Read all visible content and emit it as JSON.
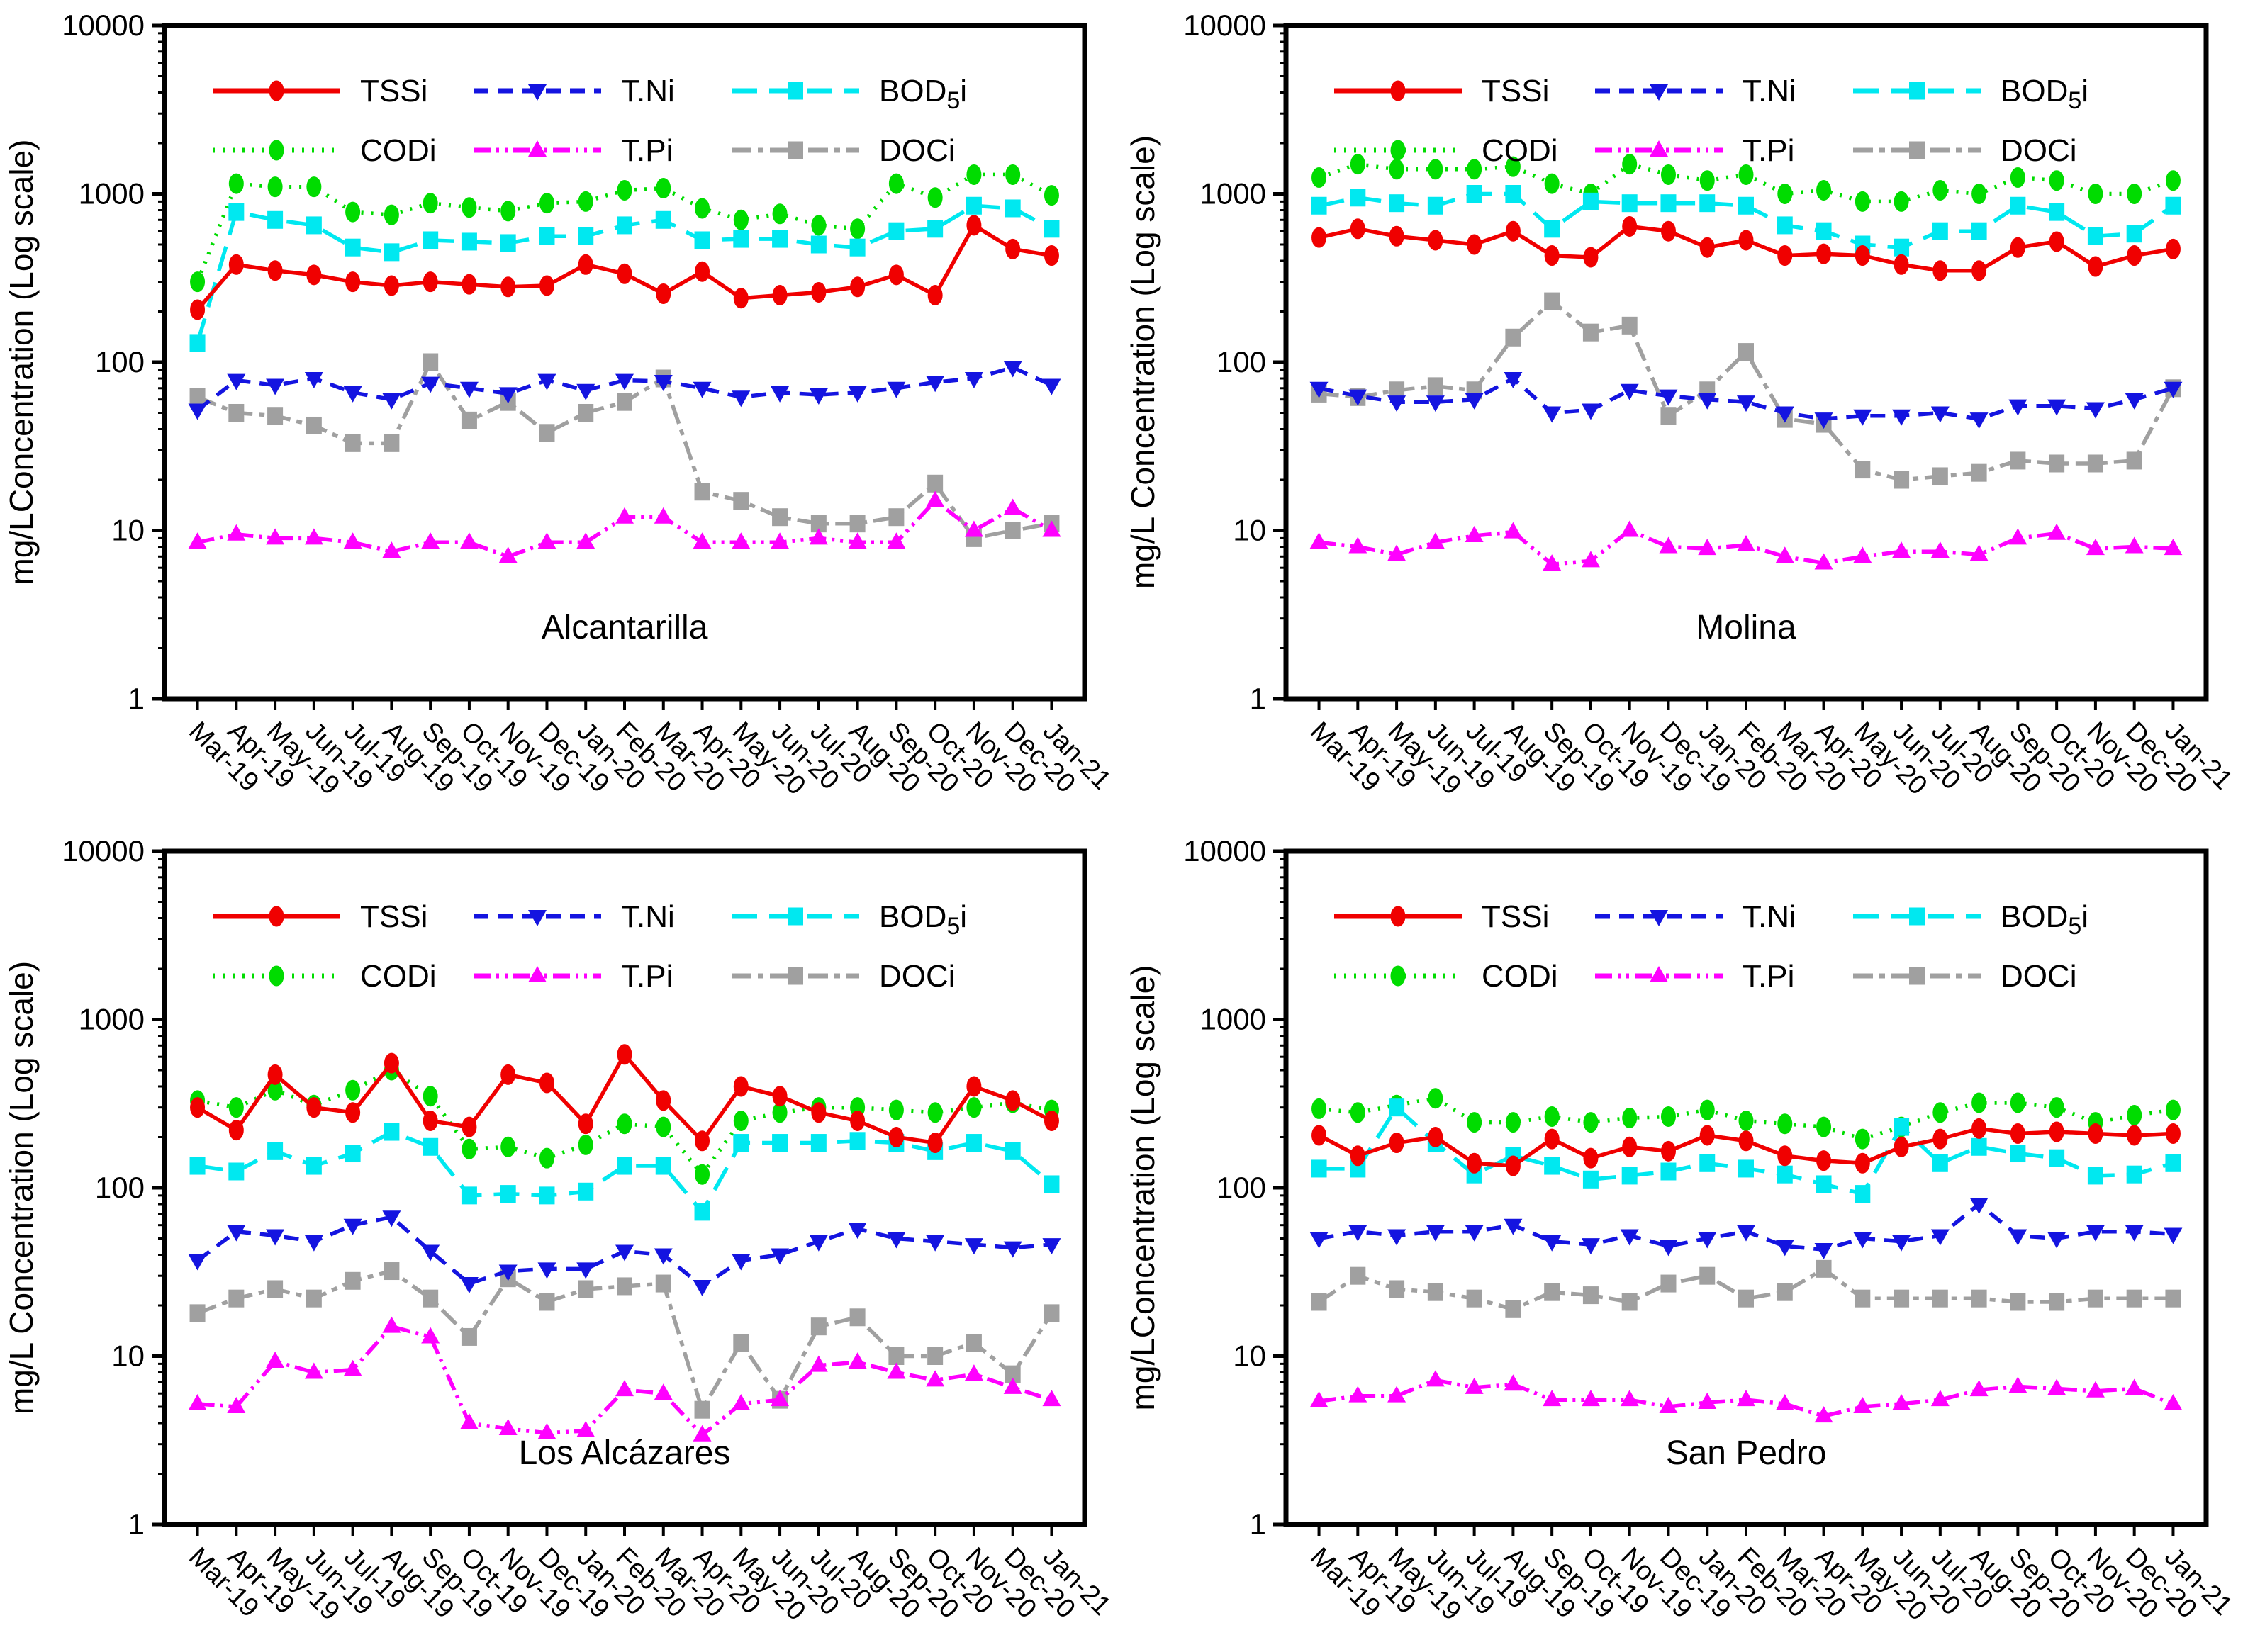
{
  "figure": {
    "description": "Four-panel log-scale monthly concentration time series",
    "y_axis_tick_labels": [
      "1",
      "10",
      "100",
      "1000",
      "10000"
    ],
    "colors": {
      "tssi": "#f00000",
      "codi": "#00dc00",
      "tni": "#1414e0",
      "tpi": "#ff00ff",
      "bod5i": "#00e8f0",
      "doci": "#a0a0a0",
      "axis": "#000000",
      "background": "#ffffff"
    }
  },
  "legend": [
    {
      "name": "TSSi",
      "label": "TSSi",
      "color": "#f00000",
      "dash": "solid",
      "marker": "ellipse"
    },
    {
      "name": "T.Ni",
      "label": "T.Ni",
      "color": "#1414e0",
      "dash": "dashed",
      "marker": "triangle-down"
    },
    {
      "name": "BOD5i",
      "label": "BOD5i",
      "label_pre": "BOD",
      "label_sub": "5",
      "label_post": "i",
      "color": "#00e8f0",
      "dash": "longdash",
      "marker": "square"
    },
    {
      "name": "CODi",
      "label": "CODi",
      "color": "#00dc00",
      "dash": "dotted",
      "marker": "ellipse"
    },
    {
      "name": "T.Pi",
      "label": "T.Pi",
      "color": "#ff00ff",
      "dash": "dashdotdot",
      "marker": "triangle-up"
    },
    {
      "name": "DOCi",
      "label": "DOCi",
      "color": "#a0a0a0",
      "dash": "dashdot",
      "marker": "square"
    }
  ],
  "chart_data": {
    "type": "line",
    "y_scale": "log",
    "ylim": [
      1,
      10000
    ],
    "y_ticks": [
      1,
      10,
      100,
      1000,
      10000
    ],
    "grid": false,
    "legend_position": "top-inside",
    "categories": [
      "Mar-19",
      "Apr-19",
      "May-19",
      "Jun-19",
      "Jul-19",
      "Aug-19",
      "Sep-19",
      "Oct-19",
      "Nov-19",
      "Dec-19",
      "Jan-20",
      "Feb-20",
      "Mar-20",
      "Apr-20",
      "May-20",
      "Jun-20",
      "Jul-20",
      "Aug-20",
      "Sep-20",
      "Oct-20",
      "Nov-20",
      "Dec-20",
      "Jan-21"
    ],
    "panels": [
      {
        "title": "Alcantarilla",
        "ylabel": "mg/LConcentration (Log scale)",
        "series": [
          {
            "name": "TSSi",
            "values": [
              205,
              380,
              350,
              330,
              300,
              285,
              300,
              290,
              280,
              285,
              380,
              335,
              255,
              345,
              240,
              250,
              260,
              280,
              330,
              250,
              650,
              470,
              430
            ]
          },
          {
            "name": "CODi",
            "values": [
              300,
              1150,
              1100,
              1100,
              780,
              750,
              880,
              830,
              790,
              880,
              900,
              1050,
              1080,
              820,
              700,
              760,
              650,
              620,
              1150,
              950,
              1300,
              1300,
              980
            ]
          },
          {
            "name": "T.Ni",
            "values": [
              52,
              78,
              73,
              80,
              66,
              60,
              75,
              70,
              65,
              78,
              68,
              78,
              77,
              70,
              62,
              66,
              64,
              66,
              70,
              76,
              80,
              93,
              73
            ]
          },
          {
            "name": "T.Pi",
            "values": [
              8.5,
              9.5,
              9,
              9,
              8.5,
              7.5,
              8.5,
              8.5,
              7,
              8.5,
              8.5,
              12,
              12,
              8.5,
              8.5,
              8.5,
              9,
              8.5,
              8.5,
              15,
              10,
              13.5,
              10
            ]
          },
          {
            "name": "BOD5i",
            "values": [
              130,
              780,
              700,
              650,
              480,
              450,
              530,
              520,
              510,
              560,
              560,
              650,
              700,
              530,
              540,
              540,
              500,
              480,
              600,
              620,
              850,
              820,
              620
            ]
          },
          {
            "name": "DOCi",
            "values": [
              62,
              50,
              48,
              42,
              33,
              33,
              100,
              45,
              58,
              38,
              50,
              58,
              80,
              17,
              15,
              12,
              11,
              11,
              12,
              19,
              9,
              10,
              11
            ]
          }
        ]
      },
      {
        "title": "Molina",
        "ylabel": "mg/L Concentration (Log scale)",
        "series": [
          {
            "name": "TSSi",
            "values": [
              550,
              620,
              560,
              530,
              500,
              600,
              430,
              420,
              640,
              600,
              480,
              530,
              430,
              440,
              430,
              380,
              350,
              350,
              480,
              520,
              370,
              430,
              470
            ]
          },
          {
            "name": "CODi",
            "values": [
              1250,
              1500,
              1400,
              1400,
              1400,
              1450,
              1150,
              1000,
              1500,
              1300,
              1200,
              1300,
              1000,
              1050,
              900,
              900,
              1050,
              1000,
              1250,
              1200,
              1000,
              1000,
              1200
            ]
          },
          {
            "name": "T.Ni",
            "values": [
              70,
              63,
              58,
              58,
              60,
              80,
              50,
              52,
              68,
              63,
              60,
              58,
              50,
              46,
              48,
              48,
              50,
              46,
              55,
              55,
              53,
              60,
              70
            ]
          },
          {
            "name": "T.Pi",
            "values": [
              8.5,
              8,
              7.2,
              8.5,
              9.3,
              9.8,
              6.3,
              6.6,
              10,
              8,
              7.8,
              8.2,
              7,
              6.4,
              7,
              7.5,
              7.5,
              7.2,
              9,
              9.6,
              7.8,
              8,
              7.8
            ]
          },
          {
            "name": "BOD5i",
            "values": [
              850,
              950,
              880,
              850,
              1000,
              1000,
              620,
              900,
              880,
              880,
              880,
              850,
              650,
              600,
              500,
              480,
              600,
              600,
              850,
              780,
              560,
              580,
              850
            ]
          },
          {
            "name": "DOCi",
            "values": [
              65,
              62,
              68,
              72,
              68,
              140,
              230,
              150,
              165,
              48,
              68,
              115,
              46,
              43,
              23,
              20,
              21,
              22,
              26,
              25,
              25,
              26,
              70
            ]
          }
        ]
      },
      {
        "title": "Los Alcázares",
        "ylabel": "mg/L Concentration (Log scale)",
        "series": [
          {
            "name": "TSSi",
            "values": [
              300,
              220,
              470,
              300,
              280,
              550,
              250,
              230,
              470,
              420,
              240,
              620,
              330,
              190,
              400,
              350,
              280,
              250,
              200,
              185,
              400,
              330,
              250
            ]
          },
          {
            "name": "CODi",
            "values": [
              330,
              300,
              380,
              310,
              380,
              500,
              350,
              170,
              175,
              150,
              180,
              240,
              230,
              120,
              250,
              280,
              300,
              300,
              290,
              280,
              300,
              320,
              290
            ]
          },
          {
            "name": "T.Ni",
            "values": [
              37,
              55,
              52,
              48,
              60,
              67,
              42,
              27,
              32,
              33,
              33,
              42,
              40,
              26,
              37,
              40,
              48,
              57,
              50,
              48,
              46,
              44,
              46
            ]
          },
          {
            "name": "T.Pi",
            "values": [
              5.2,
              5,
              9.3,
              8,
              8.3,
              15,
              13,
              4,
              3.7,
              3.5,
              3.6,
              6.3,
              6,
              3.4,
              5.2,
              5.5,
              8.8,
              9.2,
              8,
              7.2,
              7.8,
              6.5,
              5.5
            ]
          },
          {
            "name": "BOD5i",
            "values": [
              135,
              125,
              165,
              135,
              160,
              215,
              175,
              90,
              92,
              90,
              95,
              135,
              135,
              72,
              185,
              185,
              185,
              190,
              185,
              165,
              185,
              165,
              105
            ]
          },
          {
            "name": "DOCi",
            "values": [
              18,
              22,
              25,
              22,
              28,
              32,
              22,
              13,
              29,
              21,
              25,
              26,
              27,
              4.8,
              12,
              5.5,
              15,
              17,
              10,
              10,
              12,
              7.8,
              18
            ]
          }
        ]
      },
      {
        "title": "San Pedro",
        "ylabel": "mg/LConcentration (Log scale)",
        "series": [
          {
            "name": "TSSi",
            "values": [
              205,
              155,
              185,
              200,
              140,
              135,
              195,
              150,
              175,
              165,
              205,
              190,
              155,
              145,
              140,
              175,
              195,
              225,
              210,
              215,
              210,
              205,
              210
            ]
          },
          {
            "name": "CODi",
            "values": [
              295,
              280,
              310,
              340,
              245,
              245,
              265,
              245,
              260,
              265,
              290,
              250,
              240,
              230,
              195,
              230,
              280,
              320,
              320,
              300,
              245,
              270,
              290
            ]
          },
          {
            "name": "T.Ni",
            "values": [
              50,
              55,
              52,
              55,
              55,
              60,
              48,
              46,
              52,
              45,
              50,
              55,
              45,
              43,
              50,
              48,
              52,
              80,
              52,
              50,
              55,
              55,
              53
            ]
          },
          {
            "name": "T.Pi",
            "values": [
              5.4,
              5.8,
              5.8,
              7.2,
              6.5,
              6.8,
              5.5,
              5.5,
              5.5,
              5,
              5.3,
              5.5,
              5.2,
              4.4,
              5,
              5.2,
              5.5,
              6.3,
              6.6,
              6.4,
              6.2,
              6.4,
              5.2
            ]
          },
          {
            "name": "BOD5i",
            "values": [
              130,
              130,
              300,
              185,
              120,
              155,
              135,
              112,
              118,
              125,
              140,
              130,
              120,
              105,
              92,
              230,
              140,
              175,
              160,
              150,
              118,
              120,
              140
            ]
          },
          {
            "name": "DOCi",
            "values": [
              21,
              30,
              25,
              24,
              22,
              19,
              24,
              23,
              21,
              27,
              30,
              22,
              24,
              33,
              22,
              22,
              22,
              22,
              21,
              21,
              22,
              22,
              22
            ]
          }
        ]
      }
    ]
  }
}
